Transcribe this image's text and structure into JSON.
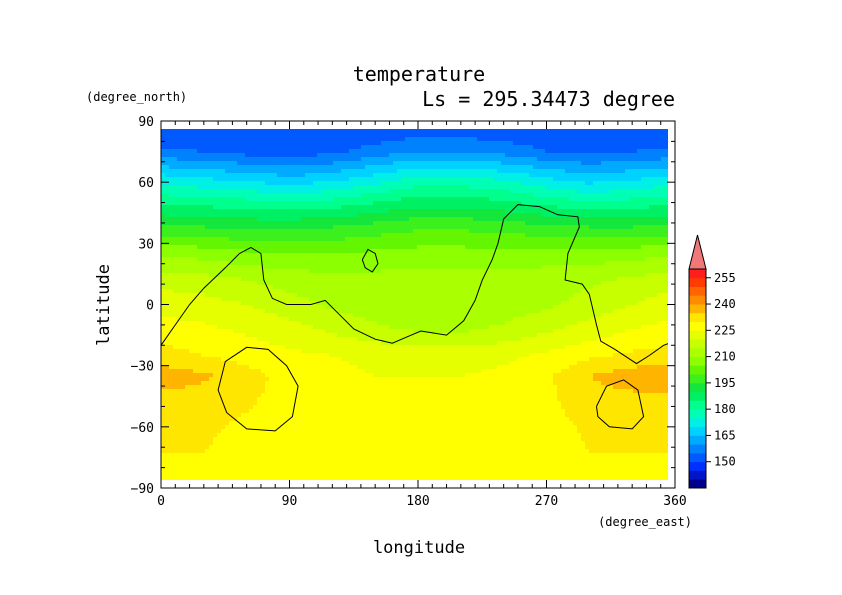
{
  "chart_data": {
    "type": "heatmap",
    "title": "temperature",
    "subtitle": "Ls = 295.34473 degree",
    "xlabel": "longitude",
    "ylabel": "latitude",
    "x_units": "(degree_east)",
    "y_units": "(degree_north)",
    "xlim": [
      0,
      360
    ],
    "ylim": [
      -90,
      90
    ],
    "x_ticks": [
      "0",
      "90",
      "180",
      "270",
      "360"
    ],
    "y_ticks": [
      "90",
      "60",
      "30",
      "0",
      "−30",
      "−60",
      "−90"
    ],
    "x_tick_values": [
      0,
      90,
      180,
      270,
      360
    ],
    "y_tick_values": [
      90,
      60,
      30,
      0,
      -30,
      -60,
      -90
    ],
    "colorbar": {
      "levels": [
        135,
        140,
        145,
        150,
        155,
        160,
        165,
        170,
        175,
        180,
        185,
        190,
        195,
        200,
        205,
        210,
        215,
        220,
        225,
        230,
        235,
        240,
        245,
        250,
        255,
        260
      ],
      "colors": [
        "#00008c",
        "#0014c8",
        "#0030ff",
        "#005aff",
        "#0082ff",
        "#00aaff",
        "#00d2ff",
        "#00f0e6",
        "#00ffb4",
        "#00ff8c",
        "#00f064",
        "#14e63c",
        "#3cf01e",
        "#64f500",
        "#8cff00",
        "#aaff00",
        "#c8ff00",
        "#e6ff00",
        "#ffff00",
        "#ffe600",
        "#ffb400",
        "#ff8c00",
        "#ff6400",
        "#ff3c00",
        "#ff1e1e"
      ],
      "over_color": "#f07878",
      "tick_labels": [
        "150",
        "165",
        "180",
        "195",
        "210",
        "225",
        "240",
        "255"
      ],
      "tick_values": [
        150,
        165,
        180,
        195,
        210,
        225,
        240,
        255
      ]
    },
    "grid": false,
    "legend": "right",
    "temperature_rows": [
      {
        "lat": 90,
        "temps": [
          149,
          149,
          149,
          149,
          149,
          149,
          149,
          149,
          149,
          149,
          149,
          149,
          149
        ]
      },
      {
        "lat": 75,
        "temps": [
          156,
          155,
          153,
          152,
          154,
          157,
          160,
          160,
          158,
          155,
          154,
          155,
          156
        ]
      },
      {
        "lat": 62,
        "temps": [
          172,
          170,
          168,
          166,
          168,
          172,
          176,
          176,
          174,
          170,
          167,
          169,
          172
        ]
      },
      {
        "lat": 50,
        "temps": [
          184,
          183,
          182,
          181,
          182,
          185,
          188,
          188,
          186,
          183,
          181,
          182,
          184
        ]
      },
      {
        "lat": 38,
        "temps": [
          196,
          195,
          194,
          194,
          195,
          197,
          199,
          199,
          198,
          196,
          195,
          195,
          196
        ]
      },
      {
        "lat": 25,
        "temps": [
          209,
          208,
          206,
          205,
          205,
          206,
          207,
          207,
          207,
          207,
          207,
          208,
          209
        ]
      },
      {
        "lat": 12,
        "temps": [
          218,
          217,
          215,
          213,
          212,
          212,
          212,
          212,
          212,
          213,
          214,
          216,
          218
        ]
      },
      {
        "lat": 0,
        "temps": [
          223,
          222,
          220,
          217,
          214,
          212,
          211,
          211,
          212,
          214,
          217,
          220,
          223
        ]
      },
      {
        "lat": -12,
        "temps": [
          227,
          226,
          224,
          222,
          219,
          216,
          214,
          214,
          216,
          219,
          222,
          225,
          227
        ]
      },
      {
        "lat": -25,
        "temps": [
          232,
          230,
          228,
          226,
          225,
          224,
          223,
          223,
          224,
          226,
          229,
          231,
          232
        ]
      },
      {
        "lat": -35,
        "temps": [
          238,
          236,
          232,
          228,
          226,
          225,
          225,
          225,
          226,
          229,
          235,
          238,
          238
        ]
      },
      {
        "lat": -45,
        "temps": [
          234,
          233,
          231,
          228,
          226,
          225,
          225,
          225,
          226,
          229,
          233,
          234,
          234
        ]
      },
      {
        "lat": -60,
        "temps": [
          232,
          231,
          229,
          227,
          225,
          225,
          225,
          225,
          225,
          228,
          231,
          232,
          232
        ]
      },
      {
        "lat": -72,
        "temps": [
          231,
          230,
          228,
          226,
          225,
          225,
          225,
          225,
          225,
          227,
          230,
          231,
          231
        ]
      },
      {
        "lat": -80,
        "temps": [
          226,
          226,
          225,
          225,
          225,
          225,
          225,
          225,
          225,
          225,
          226,
          226,
          226
        ]
      },
      {
        "lat": -90,
        "temps": [
          226,
          226,
          225,
          225,
          225,
          225,
          225,
          225,
          225,
          225,
          226,
          226,
          226
        ]
      }
    ],
    "temperature_row_longitudes": [
      0,
      30,
      60,
      90,
      120,
      150,
      180,
      210,
      240,
      270,
      300,
      330,
      360
    ],
    "contours": [
      {
        "name": "topography",
        "points": [
          [
            0,
            -20
          ],
          [
            10,
            -10
          ],
          [
            20,
            0
          ],
          [
            30,
            8
          ],
          [
            45,
            18
          ],
          [
            55,
            25
          ],
          [
            63,
            28
          ],
          [
            70,
            25
          ],
          [
            72,
            12
          ],
          [
            78,
            3
          ],
          [
            88,
            0
          ],
          [
            105,
            0
          ],
          [
            115,
            2
          ],
          [
            125,
            -5
          ],
          [
            135,
            -12
          ],
          [
            150,
            -17
          ],
          [
            162,
            -19
          ],
          [
            172,
            -16
          ],
          [
            182,
            -13
          ],
          [
            200,
            -15
          ],
          [
            212,
            -8
          ],
          [
            220,
            2
          ],
          [
            225,
            12
          ],
          [
            232,
            22
          ],
          [
            236,
            30
          ],
          [
            240,
            42
          ],
          [
            250,
            49
          ],
          [
            265,
            48
          ],
          [
            278,
            44
          ],
          [
            292,
            43
          ],
          [
            293,
            38
          ],
          [
            285,
            25
          ],
          [
            283,
            12
          ],
          [
            295,
            10
          ],
          [
            300,
            5
          ],
          [
            305,
            -10
          ],
          [
            308,
            -18
          ],
          [
            318,
            -22
          ],
          [
            333,
            -29
          ],
          [
            342,
            -25
          ],
          [
            352,
            -20
          ],
          [
            360,
            -18
          ]
        ]
      },
      {
        "name": "crater-a",
        "points": [
          [
            141,
            22
          ],
          [
            145,
            27
          ],
          [
            150,
            25
          ],
          [
            152,
            20
          ],
          [
            148,
            16
          ],
          [
            143,
            18
          ],
          [
            141,
            22
          ]
        ]
      },
      {
        "name": "crater-b",
        "points": [
          [
            40,
            -42
          ],
          [
            45,
            -28
          ],
          [
            60,
            -21
          ],
          [
            75,
            -22
          ],
          [
            88,
            -30
          ],
          [
            96,
            -40
          ],
          [
            92,
            -55
          ],
          [
            80,
            -62
          ],
          [
            60,
            -61
          ],
          [
            46,
            -53
          ],
          [
            40,
            -42
          ]
        ]
      },
      {
        "name": "crater-c",
        "points": [
          [
            305,
            -50
          ],
          [
            312,
            -40
          ],
          [
            324,
            -37
          ],
          [
            334,
            -42
          ],
          [
            338,
            -55
          ],
          [
            330,
            -61
          ],
          [
            314,
            -60
          ],
          [
            306,
            -55
          ],
          [
            305,
            -50
          ]
        ]
      }
    ]
  }
}
